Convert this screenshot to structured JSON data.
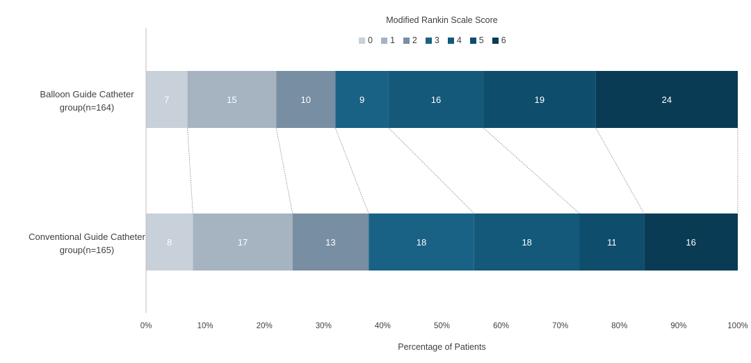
{
  "chart_data": {
    "type": "bar",
    "orientation": "horizontal",
    "stacked": "percent",
    "legend_title": "Modified Rankin Scale Score",
    "legend_position": "top",
    "categories": [
      "Balloon Guide Catheter group(n=164)",
      "Conventional Guide Catheter group(n=165)"
    ],
    "category_lines": [
      [
        "Balloon Guide Catheter",
        "group(n=164)"
      ],
      [
        "Conventional Guide Catheter",
        "group(n=165)"
      ]
    ],
    "series": [
      {
        "name": "0",
        "values": [
          7,
          8
        ],
        "color": "#c8d0d9"
      },
      {
        "name": "1",
        "values": [
          15,
          17
        ],
        "color": "#a6b4c2"
      },
      {
        "name": "2",
        "values": [
          10,
          13
        ],
        "color": "#788ea3"
      },
      {
        "name": "3",
        "values": [
          9,
          18
        ],
        "color": "#1a6186"
      },
      {
        "name": "4",
        "values": [
          16,
          18
        ],
        "color": "#14587a"
      },
      {
        "name": "5",
        "values": [
          19,
          11
        ],
        "color": "#0f4d6d"
      },
      {
        "name": "6",
        "values": [
          24,
          16
        ],
        "color": "#0a3b54"
      }
    ],
    "xlabel": "Percentage of Patients",
    "xticks": [
      "0%",
      "10%",
      "20%",
      "30%",
      "40%",
      "50%",
      "60%",
      "70%",
      "80%",
      "90%",
      "100%"
    ],
    "xlim": [
      0,
      100
    ],
    "grid": false,
    "series_lines": true
  }
}
